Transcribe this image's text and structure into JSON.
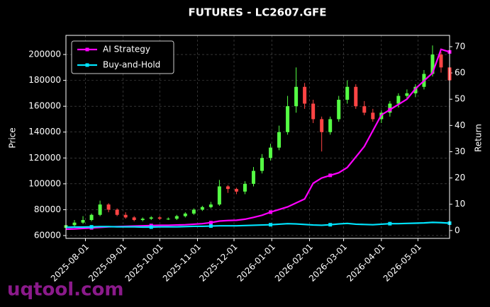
{
  "chart_data": {
    "type": "candlestick",
    "title": "FUTURES - LC2607.GFE",
    "ylabel": "Price",
    "y2label": "Return",
    "watermark": "uqtool.com",
    "x": [
      "2025-07-16",
      "2025-07-23",
      "2025-07-30",
      "2025-08-06",
      "2025-08-13",
      "2025-08-20",
      "2025-08-27",
      "2025-09-03",
      "2025-09-10",
      "2025-09-17",
      "2025-09-24",
      "2025-10-01",
      "2025-10-08",
      "2025-10-15",
      "2025-10-22",
      "2025-10-29",
      "2025-11-05",
      "2025-11-12",
      "2025-11-19",
      "2025-11-26",
      "2025-12-03",
      "2025-12-10",
      "2025-12-17",
      "2025-12-24",
      "2025-12-31",
      "2026-01-07",
      "2026-01-14",
      "2026-01-21",
      "2026-01-28",
      "2026-02-04",
      "2026-02-11",
      "2026-02-18",
      "2026-02-25",
      "2026-03-04",
      "2026-03-11",
      "2026-03-18",
      "2026-03-25",
      "2026-04-01",
      "2026-04-08",
      "2026-04-15",
      "2026-04-22",
      "2026-04-29",
      "2026-05-06",
      "2026-05-13",
      "2026-05-20",
      "2026-05-27"
    ],
    "open": [
      66000,
      68000,
      70000,
      72000,
      76000,
      84000,
      80000,
      76000,
      74000,
      72000,
      73000,
      74000,
      73000,
      73000,
      75000,
      77000,
      80000,
      82000,
      84000,
      98000,
      96000,
      94000,
      100000,
      110000,
      120000,
      128000,
      140000,
      160000,
      175000,
      162000,
      150000,
      140000,
      150000,
      165000,
      175000,
      160000,
      155000,
      150000,
      155000,
      162000,
      168000,
      170000,
      175000,
      185000,
      200000,
      190000
    ],
    "high": [
      70000,
      72000,
      75000,
      77000,
      87000,
      85000,
      81000,
      78000,
      75000,
      74000,
      75000,
      75000,
      74000,
      76000,
      78000,
      81000,
      83000,
      86000,
      103000,
      99000,
      97000,
      102000,
      113000,
      123000,
      131000,
      145000,
      168000,
      190000,
      178000,
      165000,
      152000,
      152000,
      168000,
      180000,
      177000,
      164000,
      158000,
      157000,
      164000,
      170000,
      173000,
      177000,
      188000,
      207000,
      202000,
      192000
    ],
    "low": [
      64000,
      66000,
      69000,
      71000,
      75000,
      78000,
      75000,
      73000,
      71000,
      71000,
      72000,
      72000,
      72000,
      72000,
      74000,
      76000,
      79000,
      81000,
      83000,
      93000,
      92000,
      92000,
      98000,
      108000,
      118000,
      126000,
      138000,
      155000,
      158000,
      147000,
      125000,
      138000,
      148000,
      162000,
      158000,
      153000,
      148000,
      147000,
      152000,
      159000,
      165000,
      167000,
      173000,
      183000,
      186000,
      175000
    ],
    "close": [
      68000,
      70000,
      72000,
      76000,
      84000,
      80000,
      76000,
      74000,
      72000,
      73000,
      74000,
      73000,
      73000,
      75000,
      77000,
      80000,
      82000,
      84000,
      98000,
      96000,
      94000,
      100000,
      110000,
      120000,
      128000,
      140000,
      160000,
      175000,
      162000,
      150000,
      140000,
      150000,
      165000,
      175000,
      160000,
      155000,
      150000,
      155000,
      162000,
      168000,
      170000,
      175000,
      185000,
      200000,
      190000,
      180000
    ],
    "up_color": "#55ff44",
    "down_color": "#ff4444",
    "series": [
      {
        "name": "AI Strategy",
        "color": "#ff00ff",
        "axis": "y2",
        "values": [
          0.5,
          0.6,
          0.8,
          1.0,
          1.2,
          1.4,
          1.5,
          1.6,
          1.7,
          1.8,
          1.9,
          2.0,
          2.0,
          2.1,
          2.2,
          2.4,
          2.6,
          3.0,
          3.6,
          3.8,
          3.9,
          4.3,
          5.0,
          5.8,
          7.0,
          8.0,
          9.0,
          10.5,
          12.0,
          18.0,
          20.0,
          21.0,
          22.0,
          24.0,
          28.0,
          32.0,
          38.0,
          44.0,
          46.0,
          48.0,
          50.0,
          54.0,
          57.0,
          60.0,
          69.0,
          68.0
        ]
      },
      {
        "name": "Buy-and-Hold",
        "color": "#00e5ff",
        "axis": "y2",
        "values": [
          1.2,
          1.3,
          1.3,
          1.4,
          1.5,
          1.5,
          1.4,
          1.4,
          1.4,
          1.3,
          1.3,
          1.4,
          1.4,
          1.4,
          1.5,
          1.6,
          1.6,
          1.7,
          1.8,
          1.8,
          1.8,
          1.9,
          2.0,
          2.1,
          2.2,
          2.4,
          2.6,
          2.5,
          2.3,
          2.1,
          2.0,
          2.2,
          2.5,
          2.7,
          2.4,
          2.3,
          2.2,
          2.4,
          2.6,
          2.6,
          2.7,
          2.8,
          2.9,
          3.1,
          3.0,
          2.8
        ]
      }
    ],
    "xlim": [
      "2025-07-16",
      "2026-05-27"
    ],
    "xticks": [
      "2025-08-01",
      "2025-09-01",
      "2025-10-01",
      "2025-11-01",
      "2025-12-01",
      "2026-01-01",
      "2026-02-01",
      "2026-03-01",
      "2026-04-01",
      "2026-05-01"
    ],
    "ylim": [
      57800,
      214800
    ],
    "yticks": [
      60000,
      80000,
      100000,
      120000,
      140000,
      160000,
      180000,
      200000
    ],
    "y2lim": [
      -3,
      74.3
    ],
    "y2ticks": [
      0,
      10,
      20,
      30,
      40,
      50,
      60,
      70
    ],
    "grid": true,
    "legend": "upper left"
  }
}
